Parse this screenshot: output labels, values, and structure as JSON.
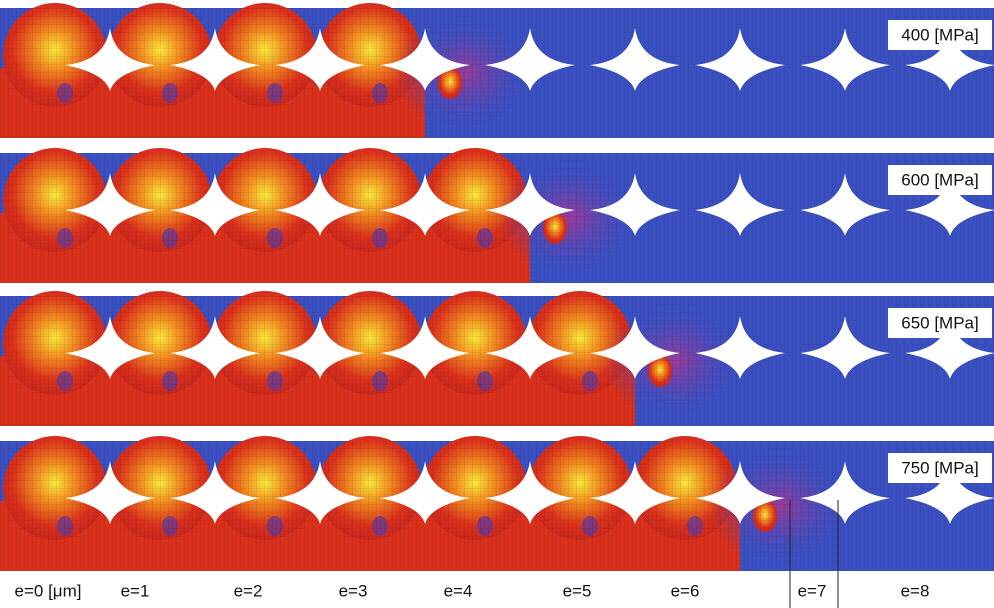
{
  "rows": [
    {
      "label": "400 [MPa]"
    },
    {
      "label": "600 [MPa]"
    },
    {
      "label": "650 [MPa]"
    },
    {
      "label": "750 [MPa]"
    }
  ],
  "columns": [
    "e=0 [μm]",
    "e=1",
    "e=2",
    "e=3",
    "e=4",
    "e=5",
    "e=6",
    "e=7",
    "e=8"
  ]
}
